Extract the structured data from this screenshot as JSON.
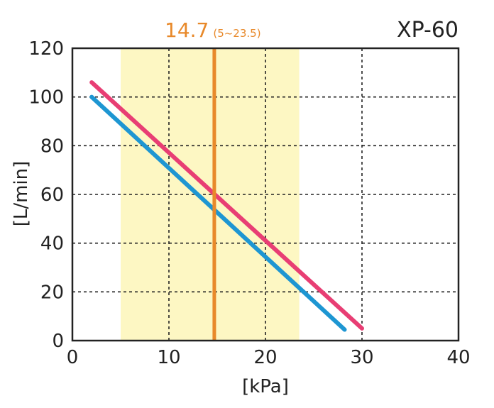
{
  "chart_data": {
    "type": "line",
    "title": "XP-60",
    "xlabel": "[kPa]",
    "ylabel": "[L/min]",
    "xlim": [
      0,
      40
    ],
    "ylim": [
      0,
      120
    ],
    "xticks": [
      0,
      10,
      20,
      30,
      40
    ],
    "yticks": [
      0,
      20,
      40,
      60,
      80,
      100,
      120
    ],
    "grid": true,
    "series": [
      {
        "color": "#e83e74",
        "points": [
          [
            2,
            106
          ],
          [
            30,
            5
          ]
        ]
      },
      {
        "color": "#1e96d2",
        "points": [
          [
            2,
            100
          ],
          [
            28.2,
            4.5
          ]
        ]
      }
    ],
    "rated": {
      "value": 14.7,
      "value_label": "14.7",
      "range_label": "(5~23.5)",
      "range": [
        5,
        23.5
      ],
      "line_color": "#e8892a",
      "band_color": "#fdf7c3"
    }
  }
}
